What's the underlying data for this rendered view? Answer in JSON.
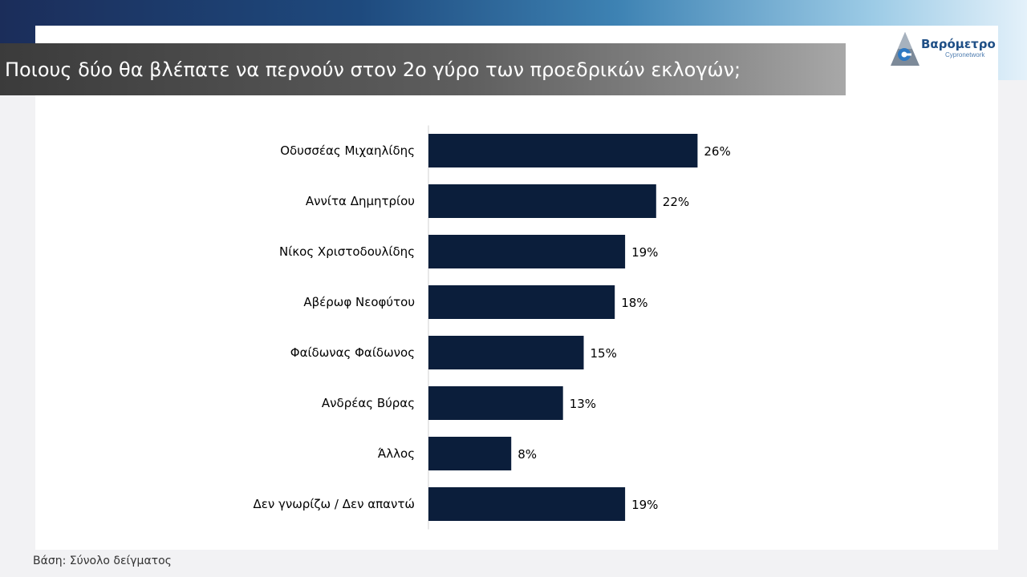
{
  "slide": {
    "title": "Ποιους δύο θα βλέπατε να περνούν στον 2ο γύρο των προεδρικών εκλογών;",
    "footnote": "Βάση: Σύνολο δείγματος",
    "logo": {
      "name": "Βαρόμετρο",
      "sub": "Cypronetwork",
      "icon": "triangle-logo-icon"
    }
  },
  "colors": {
    "bar": "#0b1e3b",
    "label": "#000000",
    "axis": "#d0d0d0",
    "title_text": "#ffffff",
    "logo_blue": "#1f4f86"
  },
  "chart_data": {
    "type": "bar",
    "orientation": "horizontal",
    "title": "",
    "xlabel": "",
    "ylabel": "",
    "categories": [
      "Οδυσσέας Μιχαηλίδης",
      "Αννίτα Δημητρίου",
      "Νίκος Χριστοδουλίδης",
      "Αβέρωφ Νεοφύτου",
      "Φαίδωνας Φαίδωνος",
      "Ανδρέας Βύρας",
      "Άλλος",
      "Δεν γνωρίζω / Δεν απαντώ"
    ],
    "values": [
      26,
      22,
      19,
      18,
      15,
      13,
      8,
      19
    ],
    "value_labels": [
      "26%",
      "22%",
      "19%",
      "18%",
      "15%",
      "13%",
      "8%",
      "19%"
    ],
    "unit": "%",
    "grid": false,
    "legend": "none"
  }
}
